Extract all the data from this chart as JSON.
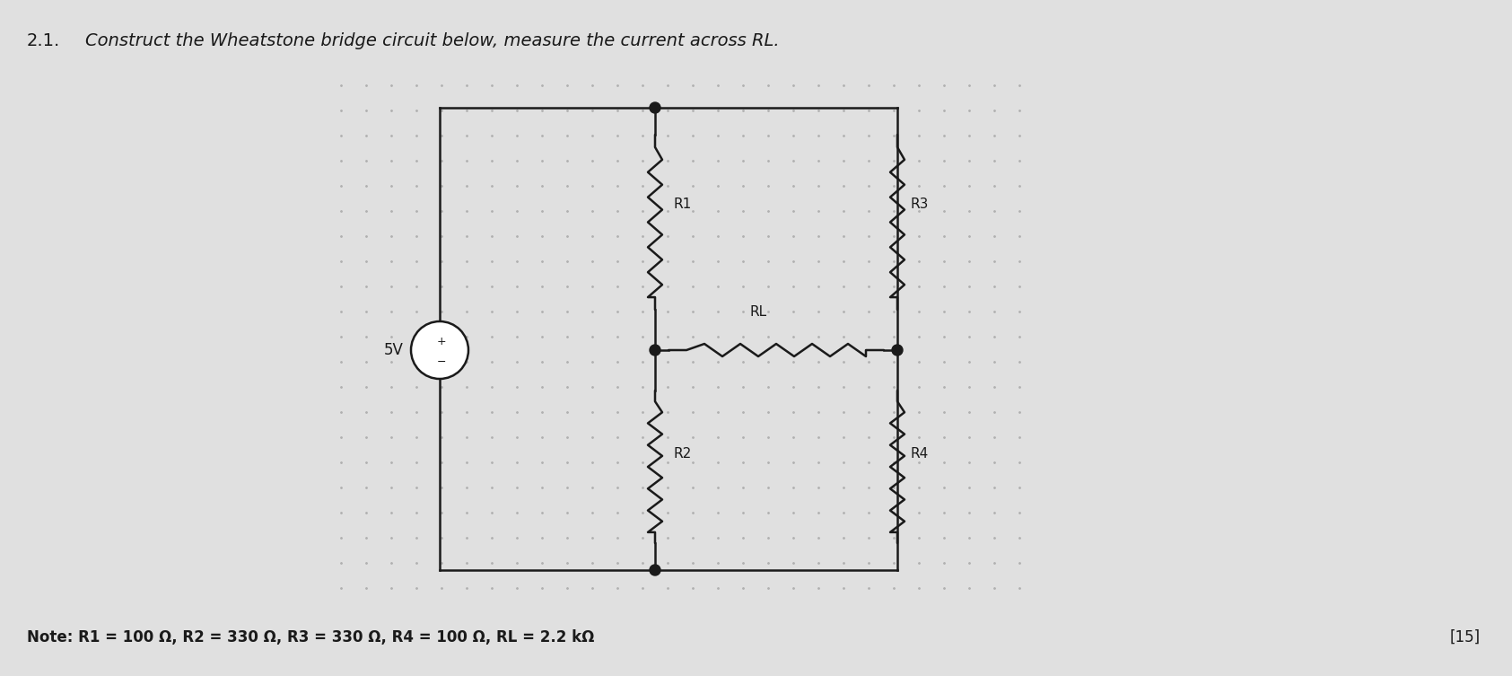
{
  "title_number": "2.1.",
  "title_text": "Construct the Wheatstone bridge circuit below, measure the current across RL.",
  "note_text": "Note: R1 = 100 Ω, R2 = 330 Ω, R3 = 330 Ω, R4 = 100 Ω, RL = 2.2 kΩ",
  "marks_text": "[15]",
  "voltage_label": "5V",
  "background_color": "#e0e0e0",
  "line_color": "#1a1a1a",
  "text_color": "#1a1a1a",
  "font_size_title_num": 14,
  "font_size_title": 14,
  "font_size_note": 12,
  "font_size_marks": 12,
  "font_size_labels": 11,
  "font_size_voltage": 11,
  "grid_dot_color": "#b0b0b0",
  "circuit_bg": "#d8d8d8"
}
